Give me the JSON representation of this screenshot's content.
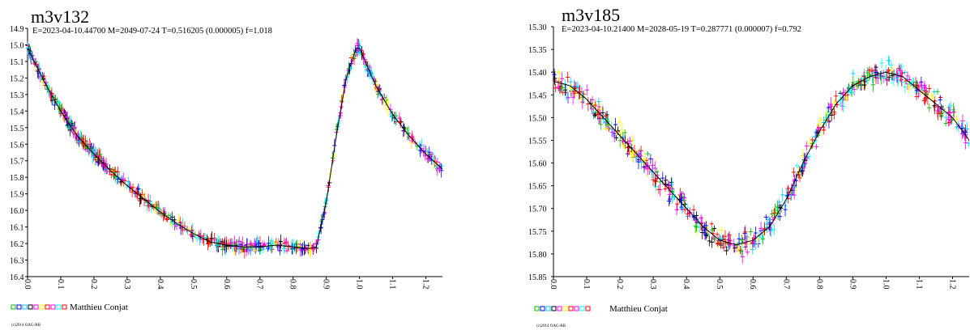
{
  "chart_data": [
    {
      "type": "scatter",
      "title": "m3v132",
      "subtitle": "E=2023-04-10.44700   M=2049-07-24   T=0.516205 (0.000005)   f=1.018",
      "xlabel": "",
      "ylabel": "",
      "xlim": [
        0.0,
        1.25
      ],
      "ylim": [
        16.4,
        14.9
      ],
      "y_inverted": true,
      "grid": false,
      "x_ticks": [
        "0.0",
        "0.1",
        "0.2",
        "0.3",
        "0.4",
        "0.5",
        "0.6",
        "0.7",
        "0.8",
        "0.9",
        "1.0",
        "1.1",
        "1.2"
      ],
      "y_ticks": [
        "14.9",
        "15.0",
        "15.1",
        "15.2",
        "15.3",
        "15.4",
        "15.5",
        "15.6",
        "15.7",
        "15.8",
        "15.9",
        "16.0",
        "16.1",
        "16.2",
        "16.3",
        "16.4"
      ],
      "curve": {
        "x": [
          0.0,
          0.05,
          0.1,
          0.15,
          0.2,
          0.25,
          0.3,
          0.35,
          0.4,
          0.45,
          0.5,
          0.55,
          0.6,
          0.65,
          0.7,
          0.75,
          0.8,
          0.85,
          0.87,
          0.9,
          0.93,
          0.96,
          0.99,
          1.0,
          1.05,
          1.1,
          1.15,
          1.2,
          1.25
        ],
        "y": [
          15.02,
          15.22,
          15.4,
          15.55,
          15.66,
          15.76,
          15.85,
          15.93,
          16.01,
          16.08,
          16.14,
          16.19,
          16.21,
          16.22,
          16.22,
          16.21,
          16.22,
          16.23,
          16.22,
          15.95,
          15.55,
          15.2,
          15.02,
          15.02,
          15.25,
          15.42,
          15.55,
          15.66,
          15.75
        ]
      },
      "legend_text": "Matthieu Conjat",
      "legend_symbols": [
        "square",
        "cross",
        "triangle",
        "plus",
        "circle",
        "triangle",
        "square",
        "star",
        "triangle-left",
        "bowtie"
      ],
      "legend_colors": [
        "#00c000",
        "#0000ff",
        "#00c8ff",
        "#000000",
        "#ff00ff",
        "#ffff00",
        "#ff0000",
        "#ff00ff",
        "#00ffff",
        "#ff0000"
      ],
      "footnote": "(c)2014 OAG-RB"
    },
    {
      "type": "scatter",
      "title": "m3v185",
      "subtitle": "E=2023-04-10.21400   M=2028-05-19   T=0.287771 (0.000007)   f=0.792",
      "xlabel": "",
      "ylabel": "",
      "xlim": [
        0.0,
        1.25
      ],
      "ylim": [
        15.85,
        15.3
      ],
      "y_inverted": true,
      "grid": false,
      "x_ticks": [
        "0.0",
        "0.1",
        "0.2",
        "0.3",
        "0.4",
        "0.5",
        "0.6",
        "0.7",
        "0.8",
        "0.9",
        "1.0",
        "1.1",
        "1.2"
      ],
      "y_ticks": [
        "15.30",
        "15.35",
        "15.40",
        "15.45",
        "15.50",
        "15.55",
        "15.60",
        "15.65",
        "15.70",
        "15.75",
        "15.80",
        "15.85"
      ],
      "curve": {
        "x": [
          0.0,
          0.05,
          0.1,
          0.15,
          0.2,
          0.25,
          0.3,
          0.35,
          0.4,
          0.45,
          0.5,
          0.55,
          0.6,
          0.65,
          0.7,
          0.75,
          0.8,
          0.85,
          0.9,
          0.95,
          1.0,
          1.05,
          1.1,
          1.15,
          1.2,
          1.25
        ],
        "y": [
          15.42,
          15.43,
          15.46,
          15.5,
          15.54,
          15.58,
          15.62,
          15.66,
          15.7,
          15.74,
          15.77,
          15.78,
          15.77,
          15.74,
          15.68,
          15.6,
          15.53,
          15.47,
          15.43,
          15.41,
          15.4,
          15.41,
          15.44,
          15.47,
          15.5,
          15.55
        ]
      },
      "legend_text": "Matthieu Conjat",
      "legend_symbols": [
        "square",
        "cross",
        "triangle",
        "plus",
        "circle",
        "triangle",
        "square",
        "star",
        "triangle-left",
        "bowtie"
      ],
      "legend_colors": [
        "#00c000",
        "#0000ff",
        "#00c8ff",
        "#000000",
        "#ff00ff",
        "#ffff00",
        "#ff0000",
        "#ff00ff",
        "#00ffff",
        "#ff0000"
      ],
      "footnote": "(c)2014 OAG-RB"
    }
  ]
}
